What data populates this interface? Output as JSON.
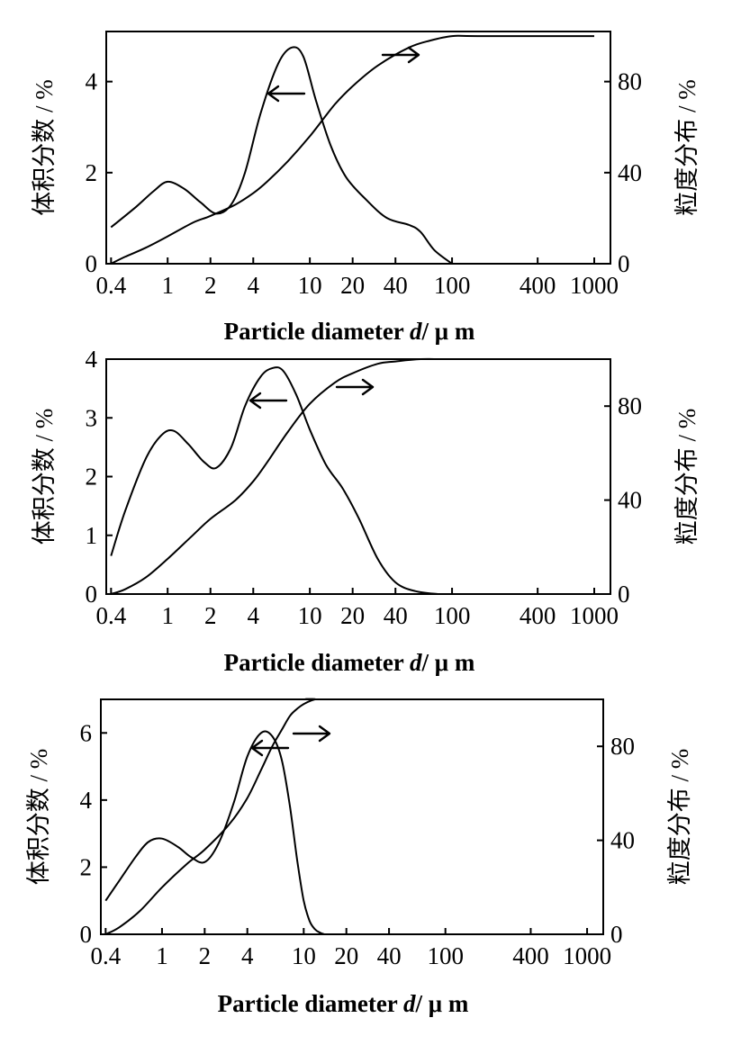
{
  "chart_data": [
    {
      "type": "line",
      "x_scale": "log",
      "xlabel": "Particle diameter",
      "xlabel_symbol": "d",
      "xlabel_unit": "/ μ m",
      "ylabel_left": "体积分数 / %",
      "ylabel_right": "粒度分布 / %",
      "x_ticks": [
        "0.4",
        "1",
        "2",
        "4",
        "10",
        "20",
        "40",
        "100",
        "400",
        "1000"
      ],
      "y_left_ticks": [
        "0",
        "2",
        "4"
      ],
      "y_right_ticks": [
        "0",
        "40",
        "80"
      ],
      "xlim": [
        0.37,
        1300
      ],
      "ylim_left": [
        0,
        5.1
      ],
      "ylim_right": [
        0,
        102
      ],
      "series": [
        {
          "axis": "left",
          "arrow": "left",
          "x": [
            0.4,
            0.6,
            0.8,
            1.0,
            1.3,
            1.7,
            2.2,
            2.8,
            3.5,
            4.5,
            6,
            7.5,
            9,
            11,
            14,
            18,
            25,
            35,
            50,
            60,
            75,
            100
          ],
          "y": [
            0.8,
            1.25,
            1.6,
            1.8,
            1.65,
            1.35,
            1.1,
            1.3,
            2.0,
            3.3,
            4.4,
            4.75,
            4.55,
            3.6,
            2.6,
            1.9,
            1.4,
            1.0,
            0.85,
            0.7,
            0.3,
            0.0
          ]
        },
        {
          "axis": "right",
          "arrow": "right",
          "x": [
            0.4,
            0.5,
            0.7,
            1,
            1.5,
            2,
            3,
            4,
            5,
            7,
            10,
            15,
            20,
            30,
            50,
            70,
            100,
            150,
            1000
          ],
          "y": [
            0,
            3,
            7,
            12,
            18,
            21,
            26,
            31,
            36,
            45,
            56,
            70,
            78,
            87,
            95,
            98,
            100,
            100,
            100
          ]
        }
      ]
    },
    {
      "type": "line",
      "x_scale": "log",
      "xlabel": "Particle diameter",
      "xlabel_symbol": "d",
      "xlabel_unit": "/ μ m",
      "ylabel_left": "体积分数 / %",
      "ylabel_right": "粒度分布 / %",
      "x_ticks": [
        "0.4",
        "1",
        "2",
        "4",
        "10",
        "20",
        "40",
        "100",
        "400",
        "1000"
      ],
      "y_left_ticks": [
        "0",
        "1",
        "2",
        "3",
        "4"
      ],
      "y_right_ticks": [
        "0",
        "40",
        "80"
      ],
      "xlim": [
        0.37,
        1300
      ],
      "ylim_left": [
        0,
        4.0
      ],
      "ylim_right": [
        0,
        100
      ],
      "series": [
        {
          "axis": "left",
          "arrow": "left",
          "x": [
            0.4,
            0.5,
            0.7,
            0.9,
            1.1,
            1.4,
            1.8,
            2.2,
            2.8,
            3.5,
            4.5,
            5.5,
            6.5,
            8,
            10,
            13,
            17,
            22,
            30,
            40,
            55,
            80
          ],
          "y": [
            0.65,
            1.4,
            2.3,
            2.7,
            2.78,
            2.55,
            2.25,
            2.15,
            2.5,
            3.2,
            3.7,
            3.85,
            3.8,
            3.4,
            2.8,
            2.2,
            1.8,
            1.3,
            0.6,
            0.2,
            0.05,
            0.0
          ]
        },
        {
          "axis": "right",
          "arrow": "right",
          "x": [
            0.4,
            0.5,
            0.7,
            1,
            1.5,
            2,
            3,
            4,
            5,
            7,
            10,
            15,
            20,
            30,
            40,
            60,
            100,
            1000
          ],
          "y": [
            0,
            2,
            7,
            15,
            25,
            32,
            40,
            48,
            56,
            69,
            81,
            90,
            94,
            98,
            99,
            100,
            100,
            100
          ]
        }
      ]
    },
    {
      "type": "line",
      "x_scale": "log",
      "xlabel": "Particle diameter",
      "xlabel_symbol": "d",
      "xlabel_unit": "/ μ m",
      "ylabel_left": "体积分数 / %",
      "ylabel_right": "粒度分布 / %",
      "x_ticks": [
        "0.4",
        "1",
        "2",
        "4",
        "10",
        "20",
        "40",
        "100",
        "400",
        "1000"
      ],
      "y_left_ticks": [
        "0",
        "2",
        "4",
        "6"
      ],
      "y_right_ticks": [
        "0",
        "40",
        "80"
      ],
      "xlim": [
        0.37,
        1300
      ],
      "ylim_left": [
        0,
        7.0
      ],
      "ylim_right": [
        0,
        100
      ],
      "series": [
        {
          "axis": "left",
          "arrow": "left",
          "x": [
            0.4,
            0.5,
            0.65,
            0.8,
            1.0,
            1.3,
            1.6,
            2.0,
            2.5,
            3.2,
            4.0,
            5.0,
            6.0,
            7.0,
            8.0,
            9.0,
            10.0,
            11.0,
            12.0,
            13.0,
            14.0
          ],
          "y": [
            1.0,
            1.6,
            2.3,
            2.75,
            2.85,
            2.6,
            2.3,
            2.15,
            2.7,
            3.9,
            5.3,
            6.0,
            5.9,
            5.2,
            3.8,
            2.2,
            1.0,
            0.4,
            0.15,
            0.05,
            0.0
          ]
        },
        {
          "axis": "right",
          "arrow": "right",
          "x": [
            0.4,
            0.5,
            0.7,
            1,
            1.5,
            2,
            3,
            4,
            5,
            6,
            7,
            8,
            9,
            10,
            12,
            15,
            1000
          ],
          "y": [
            0,
            3,
            10,
            20,
            30,
            36,
            47,
            58,
            70,
            80,
            87,
            93,
            96,
            98,
            100,
            100,
            100
          ]
        }
      ]
    }
  ]
}
